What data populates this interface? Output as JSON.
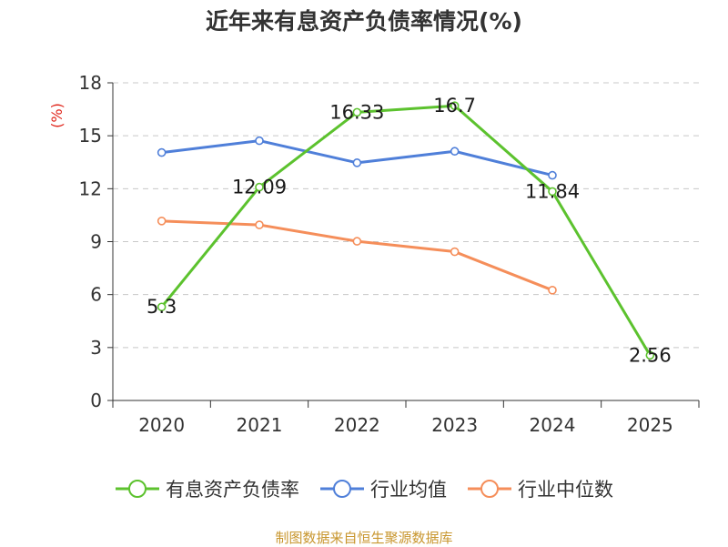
{
  "title": "近年来有息资产负债率情况(%)",
  "source": "制图数据来自恒生聚源数据库",
  "chart_data": {
    "type": "line",
    "title": "近年来有息资产负债率情况(%)",
    "ylabel": "(%)",
    "xlabel": "",
    "categories": [
      "2020",
      "2021",
      "2022",
      "2023",
      "2024",
      "2025"
    ],
    "ylim": [
      0,
      18
    ],
    "yticks": [
      0,
      3,
      6,
      9,
      12,
      15,
      18
    ],
    "grid": true,
    "legend_position": "bottom",
    "series": [
      {
        "name": "有息资产负债率",
        "color": "#5cc22e",
        "values": [
          5.3,
          12.09,
          16.33,
          16.7,
          11.84,
          2.56
        ],
        "labels": [
          "5.3",
          "12.09",
          "16.33",
          "16.7",
          "11.84",
          "2.56"
        ]
      },
      {
        "name": "行业均值",
        "color": "#4f7fd9",
        "values": [
          14.05,
          14.72,
          13.47,
          14.12,
          12.76,
          null
        ],
        "labels": []
      },
      {
        "name": "行业中位数",
        "color": "#f58e5a",
        "values": [
          10.17,
          9.95,
          9.02,
          8.43,
          6.25,
          null
        ],
        "labels": []
      }
    ]
  }
}
